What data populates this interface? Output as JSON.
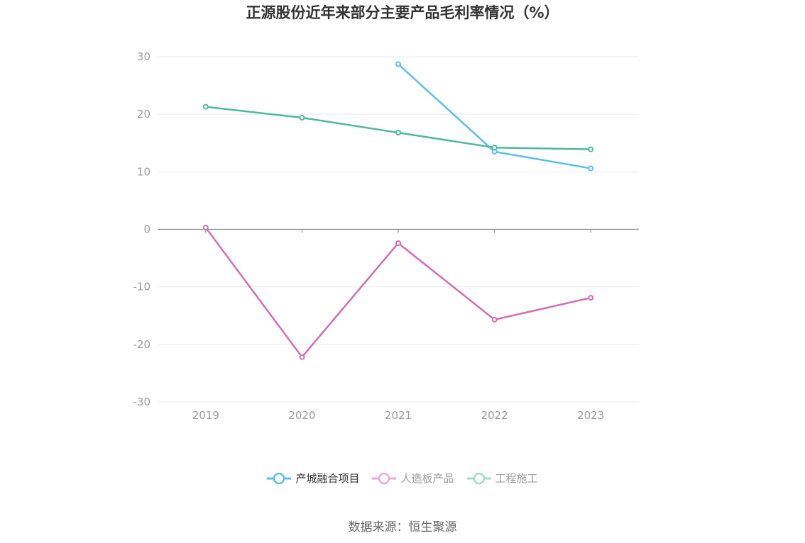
{
  "title": "正源股份近年来部分主要产品毛利率情况（%）",
  "source": "数据来源：恒生聚源",
  "chart_data": {
    "type": "line",
    "title": "正源股份近年来部分主要产品毛利率情况（%）",
    "categories": [
      "2019",
      "2020",
      "2021",
      "2022",
      "2023"
    ],
    "ylim": [
      -30,
      30
    ],
    "yticks": [
      30,
      20,
      10,
      0,
      -10,
      -20,
      -30
    ],
    "grid": true,
    "legend_position": "bottom",
    "series": [
      {
        "name": "产城融合项目",
        "color": "#5bbfe9",
        "values": [
          null,
          null,
          28.7,
          13.5,
          10.6
        ],
        "legend_color": "#5bbfe9"
      },
      {
        "name": "人造板产品",
        "color": "#d36db3",
        "values": [
          0.3,
          -22.2,
          -2.4,
          -15.7,
          -11.9
        ],
        "legend_color": "#eca8d6"
      },
      {
        "name": "工程施工",
        "color": "#4fb99a",
        "values": [
          21.3,
          19.4,
          16.8,
          14.2,
          13.9
        ],
        "legend_color": "#a1dcc9"
      }
    ]
  }
}
